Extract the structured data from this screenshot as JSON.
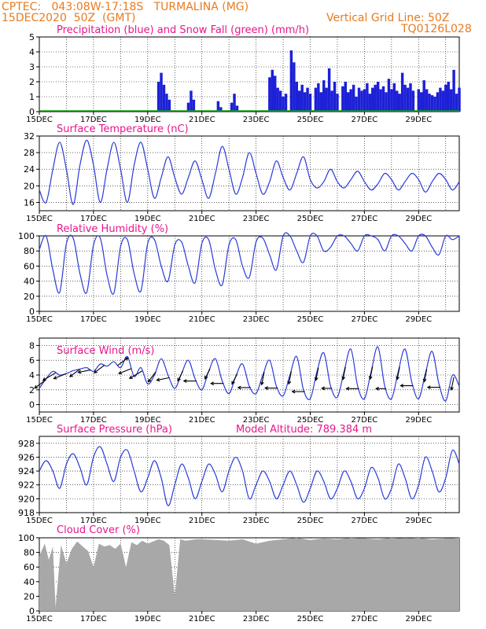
{
  "header": {
    "line1": "CPTEC:   043:08W-17:18S   TURMALINA (MG)",
    "line2": "15DEC2020  50Z  (GMT)",
    "grid_note": "Vertical Grid Line: 50Z",
    "model_id": "TQ0126L028"
  },
  "colors": {
    "header": "#e87b1e",
    "title": "#e8168c",
    "line": "#2a3bd8",
    "bar": "#1c20d6",
    "snow": "#10a010",
    "cloud": "#a8a8a8",
    "arrow": "#000000"
  },
  "x_ticks": [
    "15DEC",
    "17DEC",
    "19DEC",
    "21DEC",
    "23DEC",
    "25DEC",
    "27DEC",
    "29DEC"
  ],
  "chart_data": [
    {
      "id": "precip",
      "type": "bar",
      "title": "Precipitation (blue) and Snow Fall (green) (mm/h)",
      "ylim": [
        0,
        5
      ],
      "yticks": [
        0,
        1,
        2,
        3,
        4,
        5
      ],
      "series": [
        {
          "name": "Precipitation",
          "x_days": [
            4.4,
            4.5,
            4.6,
            4.7,
            4.8,
            5.5,
            5.6,
            5.7,
            6.6,
            6.7,
            7.1,
            7.2,
            7.3,
            8.5,
            8.6,
            8.7,
            8.8,
            8.9,
            9.0,
            9.1,
            9.3,
            9.4,
            9.5,
            9.6,
            9.7,
            9.8,
            9.9,
            10.0,
            10.2,
            10.3,
            10.4,
            10.5,
            10.6,
            10.7,
            10.8,
            10.9,
            11.0,
            11.2,
            11.3,
            11.4,
            11.5,
            11.6,
            11.7,
            11.8,
            11.9,
            12.0,
            12.1,
            12.2,
            12.3,
            12.4,
            12.5,
            12.6,
            12.7,
            12.8,
            12.9,
            13.0,
            13.1,
            13.2,
            13.3,
            13.4,
            13.5,
            13.6,
            13.7,
            13.8,
            14.0,
            14.1,
            14.2,
            14.3,
            14.4,
            14.5,
            14.6,
            14.7,
            14.8,
            14.9,
            15.0,
            15.1,
            15.2,
            15.3,
            15.4,
            15.5
          ],
          "values": [
            2.0,
            2.6,
            1.8,
            1.2,
            0.8,
            0.6,
            1.4,
            0.8,
            0.7,
            0.3,
            0.6,
            1.2,
            0.4,
            2.3,
            2.8,
            2.4,
            1.6,
            1.4,
            1.0,
            1.2,
            4.1,
            3.3,
            2.0,
            1.4,
            1.8,
            1.3,
            1.6,
            1.2,
            1.6,
            1.9,
            1.3,
            2.1,
            1.6,
            2.9,
            1.4,
            2.0,
            1.2,
            1.7,
            2.0,
            1.3,
            1.5,
            1.8,
            1.0,
            1.6,
            1.4,
            1.5,
            1.9,
            1.2,
            1.6,
            1.8,
            2.0,
            1.5,
            1.7,
            1.3,
            2.2,
            1.5,
            1.9,
            1.4,
            1.2,
            2.6,
            1.8,
            1.6,
            1.9,
            1.4,
            1.5,
            1.3,
            2.1,
            1.5,
            1.2,
            1.1,
            1.0,
            1.3,
            1.6,
            1.4,
            1.8,
            2.0,
            1.5,
            2.8,
            1.2,
            1.6
          ]
        },
        {
          "name": "Snow Fall",
          "x_days": [],
          "values": []
        }
      ]
    },
    {
      "id": "temp",
      "type": "line",
      "title": "Surface Temperature (nC)",
      "ylim": [
        14,
        32
      ],
      "yticks": [
        16,
        20,
        24,
        28,
        32
      ],
      "x_days": [
        0.0,
        0.25,
        0.5,
        0.75,
        1.0,
        1.25,
        1.5,
        1.75,
        2.0,
        2.25,
        2.5,
        2.75,
        3.0,
        3.25,
        3.5,
        3.75,
        4.0,
        4.25,
        4.5,
        4.75,
        5.0,
        5.25,
        5.5,
        5.75,
        6.0,
        6.25,
        6.5,
        6.75,
        7.0,
        7.25,
        7.5,
        7.75,
        8.0,
        8.25,
        8.5,
        8.75,
        9.0,
        9.25,
        9.5,
        9.75,
        10.0,
        10.25,
        10.5,
        10.75,
        11.0,
        11.25,
        11.5,
        11.75,
        12.0,
        12.25,
        12.5,
        12.75,
        13.0,
        13.25,
        13.5,
        13.75,
        14.0,
        14.25,
        14.5,
        14.75,
        15.0,
        15.25,
        15.5
      ],
      "values": [
        19,
        16,
        24,
        30.5,
        24,
        15.5,
        25,
        31,
        25,
        16,
        24,
        30.5,
        24,
        16,
        25,
        30.5,
        24,
        17,
        22,
        27,
        22,
        18,
        22,
        26,
        21.5,
        17,
        23,
        29.5,
        24,
        18,
        22,
        28,
        23,
        18,
        21,
        26,
        22,
        19,
        23,
        27,
        21.5,
        19.5,
        21,
        24,
        21,
        19.5,
        21.5,
        23.5,
        21,
        19,
        20.5,
        23,
        21.5,
        19,
        21,
        23,
        21.5,
        18.5,
        21,
        23,
        21.5,
        19,
        21
      ]
    },
    {
      "id": "rh",
      "type": "line",
      "title": "Relative Humidity (%)",
      "ylim": [
        0,
        100
      ],
      "yticks": [
        0,
        20,
        40,
        60,
        80,
        100
      ],
      "x_days": [
        0.0,
        0.25,
        0.5,
        0.75,
        1.0,
        1.25,
        1.5,
        1.75,
        2.0,
        2.25,
        2.5,
        2.75,
        3.0,
        3.25,
        3.5,
        3.75,
        4.0,
        4.25,
        4.5,
        4.75,
        5.0,
        5.25,
        5.5,
        5.75,
        6.0,
        6.25,
        6.5,
        6.75,
        7.0,
        7.25,
        7.5,
        7.75,
        8.0,
        8.25,
        8.5,
        8.75,
        9.0,
        9.25,
        9.5,
        9.75,
        10.0,
        10.25,
        10.5,
        10.75,
        11.0,
        11.25,
        11.5,
        11.75,
        12.0,
        12.25,
        12.5,
        12.75,
        13.0,
        13.25,
        13.5,
        13.75,
        14.0,
        14.25,
        14.5,
        14.75,
        15.0,
        15.25,
        15.5
      ],
      "values": [
        82,
        100,
        55,
        25,
        90,
        97,
        50,
        25,
        88,
        97,
        48,
        24,
        86,
        95,
        50,
        27,
        90,
        95,
        60,
        40,
        88,
        92,
        60,
        38,
        90,
        95,
        55,
        35,
        88,
        95,
        60,
        45,
        92,
        97,
        75,
        55,
        100,
        100,
        80,
        65,
        100,
        100,
        80,
        85,
        100,
        100,
        90,
        80,
        100,
        100,
        95,
        80,
        100,
        100,
        90,
        80,
        100,
        100,
        85,
        75,
        100,
        95,
        100
      ]
    },
    {
      "id": "wind",
      "type": "line",
      "title": "Surface Wind (m/s)",
      "ylim": [
        -1,
        9
      ],
      "yticks": [
        0,
        2,
        4,
        6,
        8
      ],
      "x_days": [
        0.0,
        0.25,
        0.5,
        0.75,
        1.0,
        1.25,
        1.5,
        1.75,
        2.0,
        2.25,
        2.5,
        2.75,
        3.0,
        3.25,
        3.5,
        3.75,
        4.0,
        4.25,
        4.5,
        4.75,
        5.0,
        5.25,
        5.5,
        5.75,
        6.0,
        6.25,
        6.5,
        6.75,
        7.0,
        7.25,
        7.5,
        7.75,
        8.0,
        8.25,
        8.5,
        8.75,
        9.0,
        9.25,
        9.5,
        9.75,
        10.0,
        10.25,
        10.5,
        10.75,
        11.0,
        11.25,
        11.5,
        11.75,
        12.0,
        12.25,
        12.5,
        12.75,
        13.0,
        13.25,
        13.5,
        13.75,
        14.0,
        14.25,
        14.5,
        14.75,
        15.0,
        15.25,
        15.5
      ],
      "values": [
        2.2,
        3.5,
        4.5,
        4.0,
        4.2,
        4.6,
        4.8,
        5.0,
        4.5,
        5.5,
        5.2,
        5.8,
        5.0,
        6.5,
        3.8,
        5.0,
        2.8,
        4.0,
        6.2,
        4.0,
        2.2,
        4.2,
        6.0,
        3.5,
        2.0,
        4.5,
        6.2,
        3.2,
        1.5,
        3.8,
        5.5,
        2.5,
        1.5,
        4.0,
        6.0,
        2.5,
        1.2,
        4.0,
        6.5,
        2.0,
        0.8,
        4.5,
        7.0,
        2.5,
        1.0,
        4.5,
        7.5,
        2.5,
        0.8,
        4.5,
        7.8,
        2.5,
        0.8,
        4.5,
        7.5,
        3.0,
        0.8,
        4.2,
        7.2,
        2.8,
        0.5,
        4.0,
        2.5
      ],
      "arrows": {
        "x_days": [
          0.2,
          0.6,
          1.0,
          1.5,
          1.9,
          2.4,
          2.9,
          3.4,
          3.8,
          4.3,
          4.8,
          5.3,
          5.8,
          6.3,
          6.8,
          7.3,
          7.8,
          8.3,
          8.8,
          9.3,
          9.8,
          10.3,
          10.8,
          11.3,
          11.8,
          12.3,
          12.8,
          13.3,
          13.8,
          14.3,
          14.8,
          15.3
        ],
        "dx": [
          -4,
          -5,
          -5,
          -4,
          -5,
          -4,
          4,
          -5,
          -5,
          -3,
          -5,
          -2,
          -5,
          -2,
          -5,
          -2,
          -5,
          -1,
          -5,
          -1,
          -5,
          -1,
          -4,
          -1,
          -5,
          -1,
          -4,
          -1,
          -5,
          -1,
          -5,
          -1
        ],
        "dy": [
          -3,
          -3,
          -2,
          -3,
          -1,
          -3,
          3,
          -2,
          -3,
          -4,
          -1,
          -4,
          0,
          -4,
          0,
          -4,
          0,
          -5,
          0,
          -5,
          0,
          -5,
          0,
          -5,
          0,
          -5,
          0,
          -5,
          0,
          -5,
          0,
          -5
        ]
      }
    },
    {
      "id": "pressure",
      "type": "line",
      "title": "Surface Pressure (hPa)",
      "subtitle": "Model Altitude: 789.384 m",
      "ylim": [
        918,
        929
      ],
      "yticks": [
        918,
        920,
        922,
        924,
        926,
        928
      ],
      "x_days": [
        0.0,
        0.25,
        0.5,
        0.75,
        1.0,
        1.25,
        1.5,
        1.75,
        2.0,
        2.25,
        2.5,
        2.75,
        3.0,
        3.25,
        3.5,
        3.75,
        4.0,
        4.25,
        4.5,
        4.75,
        5.0,
        5.25,
        5.5,
        5.75,
        6.0,
        6.25,
        6.5,
        6.75,
        7.0,
        7.25,
        7.5,
        7.75,
        8.0,
        8.25,
        8.5,
        8.75,
        9.0,
        9.25,
        9.5,
        9.75,
        10.0,
        10.25,
        10.5,
        10.75,
        11.0,
        11.25,
        11.5,
        11.75,
        12.0,
        12.25,
        12.5,
        12.75,
        13.0,
        13.25,
        13.5,
        13.75,
        14.0,
        14.25,
        14.5,
        14.75,
        15.0,
        15.25,
        15.5
      ],
      "values": [
        924,
        925.5,
        924,
        921.5,
        925,
        926.5,
        924.5,
        922,
        926,
        927.5,
        925,
        922.5,
        926,
        927,
        924,
        921,
        923,
        925.5,
        923,
        919,
        922,
        925,
        923,
        920,
        922.5,
        925,
        923.5,
        921,
        924,
        926,
        924,
        920,
        922,
        924,
        922.5,
        920,
        922,
        924,
        922,
        919.5,
        921.5,
        924,
        922.5,
        920,
        921.5,
        924,
        922.5,
        920,
        921.5,
        924.5,
        923,
        920,
        921.5,
        925,
        923,
        920,
        922,
        926,
        924,
        921,
        923,
        927,
        925
      ]
    },
    {
      "id": "cloud",
      "type": "area",
      "title": "Cloud Cover (%)",
      "ylim": [
        0,
        100
      ],
      "yticks": [
        0,
        20,
        40,
        60,
        80,
        100
      ],
      "x_days": [
        0.0,
        0.2,
        0.35,
        0.5,
        0.6,
        0.8,
        1.0,
        1.2,
        1.4,
        1.6,
        1.8,
        2.0,
        2.2,
        2.4,
        2.6,
        2.8,
        3.0,
        3.2,
        3.4,
        3.6,
        3.8,
        4.0,
        4.2,
        4.4,
        4.6,
        4.8,
        5.0,
        5.2,
        5.4,
        5.6,
        5.8,
        6.0,
        6.5,
        7.0,
        7.5,
        8.0,
        8.5,
        9.0,
        9.5,
        10.0,
        10.5,
        11.0,
        11.5,
        12.0,
        12.5,
        13.0,
        13.5,
        14.0,
        14.5,
        15.0,
        15.5
      ],
      "values": [
        75,
        92,
        70,
        88,
        5,
        90,
        65,
        85,
        95,
        88,
        82,
        60,
        92,
        88,
        90,
        85,
        92,
        60,
        94,
        90,
        96,
        92,
        95,
        98,
        96,
        90,
        20,
        98,
        96,
        97,
        98,
        98,
        97,
        96,
        98,
        92,
        96,
        98,
        100,
        97,
        99,
        98,
        100,
        99,
        98,
        100,
        99,
        100,
        98,
        99,
        100
      ]
    }
  ]
}
